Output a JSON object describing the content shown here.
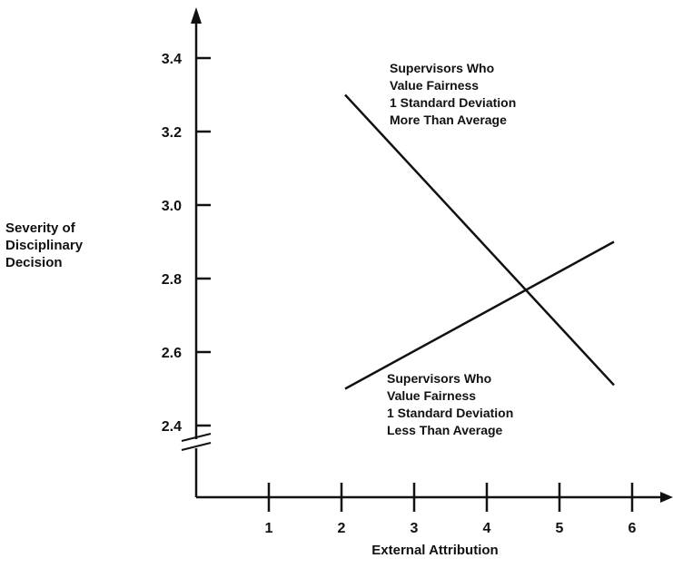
{
  "chart_data": {
    "type": "line",
    "title": "",
    "xlabel": "External   Attribution",
    "ylabel": [
      "Severity  of",
      "Disciplinary",
      "Decision"
    ],
    "xlim": [
      0,
      6.6
    ],
    "ylim": [
      2.22,
      3.48
    ],
    "x_ticks": [
      1,
      2,
      3,
      4,
      5,
      6
    ],
    "y_ticks": [
      2.4,
      2.6,
      2.8,
      3.0,
      3.2,
      3.4
    ],
    "y_axis_break": true,
    "grid": false,
    "legend": "none",
    "series": [
      {
        "x": [
          2.05,
          5.75
        ],
        "y": [
          3.3,
          2.51
        ],
        "annotation": [
          "Supervisors Who",
          "Value Fairness",
          "1 Standard Deviation",
          "More Than Average"
        ]
      },
      {
        "x": [
          2.05,
          5.75
        ],
        "y": [
          2.5,
          2.9
        ],
        "annotation": [
          "Supervisors Who",
          "Value Fairness",
          "1 Standard Deviation",
          "Less Than Average"
        ]
      }
    ],
    "colors": {
      "ink": "#111111",
      "background": "#ffffff"
    }
  }
}
